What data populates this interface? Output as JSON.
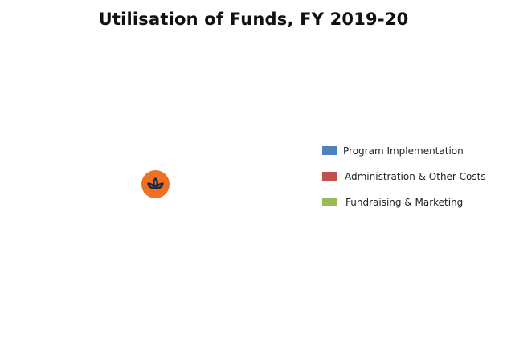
{
  "chart_data": {
    "type": "pie",
    "title": "Utilisation of Funds, FY 2019-20",
    "categories": [
      "Program Implementation",
      "Administration & Other Costs",
      "Fundraising & Marketing"
    ],
    "colors": [
      "#4f81bd",
      "#c0504d",
      "#9bbb59"
    ],
    "legend_position": "right"
  },
  "logo": {
    "icon": "lotus-icon",
    "background_color": "#f07023",
    "foreground_color": "#1f2a44"
  }
}
